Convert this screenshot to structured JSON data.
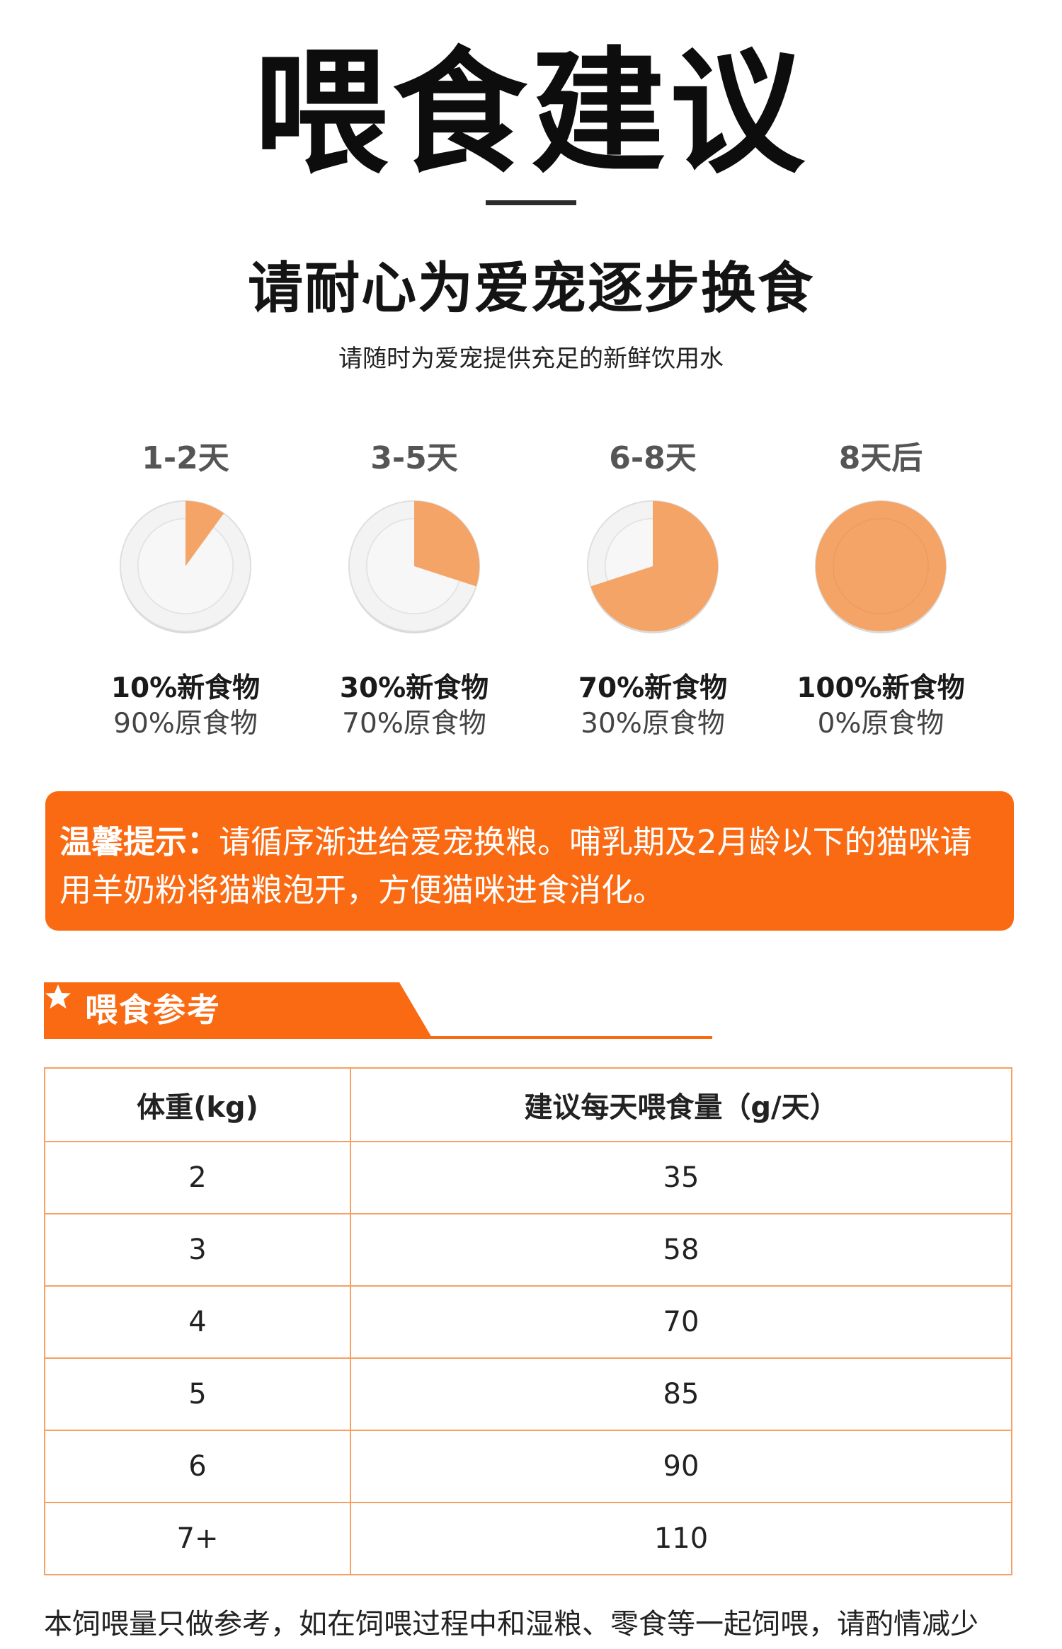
{
  "header": {
    "title": "喂食建议",
    "subtitle": "请耐心为爱宠逐步换食",
    "note": "请随时为爱宠提供充足的新鲜饮用水"
  },
  "stages": [
    {
      "day": "1-2天",
      "new_label": "10%新食物",
      "old_label": "90%原食物",
      "new_fraction": 0.1
    },
    {
      "day": "3-5天",
      "new_label": "30%新食物",
      "old_label": "70%原食物",
      "new_fraction": 0.3
    },
    {
      "day": "6-8天",
      "new_label": "70%新食物",
      "old_label": "30%原食物",
      "new_fraction": 0.7
    },
    {
      "day": "8天后",
      "new_label": "100%新食物",
      "old_label": "0%原食物",
      "new_fraction": 1.0
    }
  ],
  "tip": {
    "label": "温馨提示：",
    "text": "请循序渐进给爱宠换粮。哺乳期及2月龄以下的猫咪请用羊奶粉将猫粮泡开，方便猫咪进食消化。"
  },
  "section": {
    "title": "喂食参考"
  },
  "table": {
    "headers": [
      "体重(kg)",
      "建议每天喂食量（g/天）"
    ],
    "rows": [
      [
        "2",
        "35"
      ],
      [
        "3",
        "58"
      ],
      [
        "4",
        "70"
      ],
      [
        "5",
        "85"
      ],
      [
        "6",
        "90"
      ],
      [
        "7+",
        "110"
      ]
    ]
  },
  "footer": {
    "text": "本饲喂量只做参考，如在饲喂过程中和湿粮、零食等一起饲喂，请酌情减少"
  },
  "colors": {
    "accent": "#fa6a12",
    "pie_fill": "#f5a468",
    "table_border": "#f7a064"
  }
}
